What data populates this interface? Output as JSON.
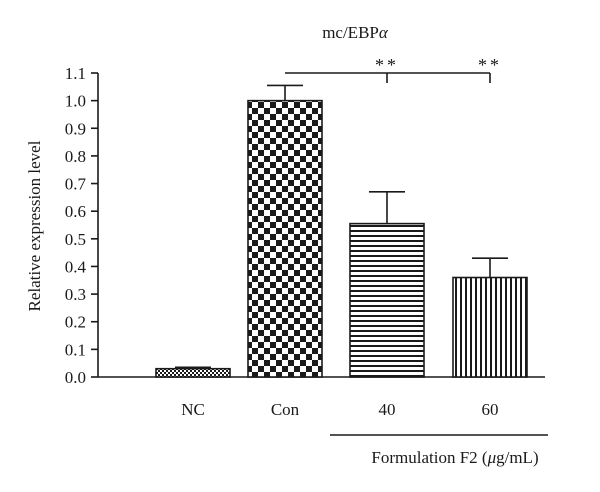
{
  "chart_data": {
    "type": "bar",
    "title": "mc/EBP",
    "title_symbol": "α",
    "ylabel": "Relative expression level",
    "ylim": [
      0,
      1.1
    ],
    "yticks": [
      "0.0",
      "0.1",
      "0.2",
      "0.3",
      "0.4",
      "0.5",
      "0.6",
      "0.7",
      "0.8",
      "0.9",
      "1.0",
      "1.1"
    ],
    "categories": [
      "NC",
      "Con",
      "40",
      "60"
    ],
    "values": [
      0.03,
      1.0,
      0.555,
      0.36
    ],
    "errors": [
      0.005,
      0.055,
      0.115,
      0.07
    ],
    "fill_patterns": [
      "dots",
      "checker",
      "horizontal-lines",
      "vertical-lines"
    ],
    "significance": [
      {
        "from": "Con",
        "to": "40",
        "label": "**"
      },
      {
        "from": "Con",
        "to": "60",
        "label": "**"
      }
    ],
    "group_label": "Formulation F2 (μg/mL)",
    "group_label_prefix": "Formulation F2 (",
    "group_label_mu": "μ",
    "group_label_suffix": "g/mL)",
    "grid": false,
    "colors": {
      "ink": "#1a1a1a",
      "background": "#ffffff"
    }
  }
}
